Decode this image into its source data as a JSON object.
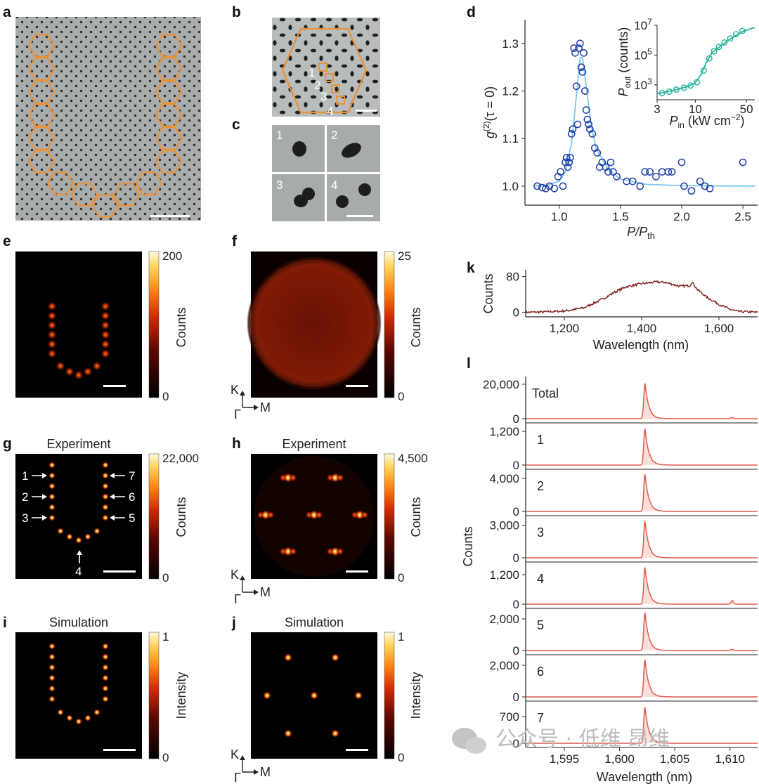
{
  "panels": {
    "a": {
      "label": "a"
    },
    "b": {
      "label": "b",
      "cavity_labels": [
        "1",
        "2",
        "3",
        "4"
      ]
    },
    "c": {
      "label": "c",
      "tile_labels": [
        "1",
        "2",
        "3",
        "4"
      ]
    },
    "d": {
      "label": "d"
    },
    "e": {
      "label": "e",
      "colorbar": {
        "max": "200",
        "min": "0",
        "label": "Counts"
      }
    },
    "f": {
      "label": "f",
      "colorbar": {
        "max": "25",
        "min": "0",
        "label": "Counts"
      },
      "axes": {
        "k": "K",
        "gamma": "Γ",
        "m": "M"
      }
    },
    "g": {
      "label": "g",
      "title": "Experiment",
      "colorbar": {
        "max": "22,000",
        "min": "0",
        "label": "Counts"
      },
      "arrows": [
        "1",
        "2",
        "3",
        "4",
        "5",
        "6",
        "7"
      ]
    },
    "h": {
      "label": "h",
      "title": "Experiment",
      "colorbar": {
        "max": "4,500",
        "min": "0",
        "label": "Counts"
      },
      "axes": {
        "k": "K",
        "gamma": "Γ",
        "m": "M"
      }
    },
    "i": {
      "label": "i",
      "title": "Simulation",
      "colorbar": {
        "max": "1",
        "min": "0",
        "label": "Intensity"
      }
    },
    "j": {
      "label": "j",
      "title": "Simulation",
      "colorbar": {
        "max": "1",
        "min": "0",
        "label": "Intensity"
      },
      "axes": {
        "k": "K",
        "gamma": "Γ",
        "m": "M"
      }
    },
    "k": {
      "label": "k"
    },
    "l": {
      "label": "l"
    }
  },
  "watermark": "公众号 · 低维 昂维",
  "colors": {
    "orange": "#e8923a",
    "marker_blue": "#1f3fa8",
    "fit_blue": "#7ec8ea",
    "inset_green": "#22b39a",
    "k_line": "#7a1d16",
    "l_line": "#e05a4e",
    "l_fill": "#f6c9c3"
  },
  "chart_data": [
    {
      "id": "d",
      "type": "scatter",
      "xlabel": "P/P_th",
      "ylabel": "g(2)(τ = 0)",
      "xlim": [
        0.72,
        2.62
      ],
      "ylim": [
        0.96,
        1.35
      ],
      "xticks": [
        1.0,
        1.5,
        2.0,
        2.5
      ],
      "xticklabels": [
        "1.0",
        "1.5",
        "2.0",
        "2.5"
      ],
      "yticks": [
        1.0,
        1.1,
        1.2,
        1.3
      ],
      "yticklabels": [
        "1.0",
        "1.1",
        "1.2",
        "1.3"
      ],
      "series": [
        {
          "marker": "open-circle",
          "x": [
            0.82,
            0.86,
            0.89,
            0.92,
            0.96,
            0.99,
            1.01,
            1.03,
            1.05,
            1.06,
            1.07,
            1.08,
            1.09,
            1.1,
            1.11,
            1.12,
            1.13,
            1.14,
            1.15,
            1.16,
            1.17,
            1.18,
            1.19,
            1.2,
            1.21,
            1.22,
            1.23,
            1.24,
            1.25,
            1.27,
            1.29,
            1.31,
            1.33,
            1.35,
            1.38,
            1.4,
            1.42,
            1.44,
            1.47,
            1.55,
            1.6,
            1.66,
            1.7,
            1.74,
            1.79,
            1.84,
            1.89,
            1.92,
            2.0,
            2.02,
            2.08,
            2.15,
            2.19,
            2.23,
            2.5
          ],
          "y": [
            1.0,
            0.997,
            0.995,
            1.0,
            0.995,
            1.02,
            1.03,
            1.0,
            1.05,
            1.06,
            1.04,
            1.05,
            1.06,
            1.11,
            1.12,
            1.29,
            1.28,
            1.21,
            1.13,
            1.29,
            1.3,
            1.25,
            1.24,
            1.28,
            1.2,
            1.16,
            1.14,
            1.13,
            1.12,
            1.11,
            1.08,
            1.07,
            1.04,
            1.05,
            1.04,
            1.03,
            1.05,
            1.03,
            1.02,
            1.01,
            1.01,
            1.0,
            1.03,
            1.03,
            1.02,
            1.03,
            1.03,
            1.03,
            1.05,
            1.0,
            0.99,
            1.01,
            1.0,
            0.995,
            1.05
          ]
        },
        {
          "type": "line",
          "marker": "none",
          "x": [
            0.8,
            0.9,
            1.0,
            1.05,
            1.1,
            1.14,
            1.17,
            1.19,
            1.22,
            1.26,
            1.3,
            1.4,
            1.5,
            1.7,
            2.0,
            2.6
          ],
          "y": [
            1.0,
            1.002,
            1.01,
            1.03,
            1.09,
            1.19,
            1.27,
            1.27,
            1.21,
            1.13,
            1.08,
            1.035,
            1.015,
            1.004,
            1.001,
            1.0
          ]
        }
      ],
      "inset": {
        "type": "scatter",
        "xscale": "log",
        "yscale": "log",
        "xlabel": "P_in (kW cm−2)",
        "ylabel": "P_out (counts)",
        "xlim": [
          3,
          65
        ],
        "ylim": [
          100,
          10000000
        ],
        "xticks": [
          3,
          10,
          50
        ],
        "xticklabels": [
          "3",
          "10",
          "50"
        ],
        "yticks": [
          1000,
          100000,
          10000000
        ],
        "x": [
          3.5,
          4.4,
          5.5,
          7.0,
          8.6,
          10.5,
          13.0,
          15.5,
          18.0,
          21.0,
          25.0,
          30.0,
          36.0,
          44.0
        ],
        "y": [
          280,
          350,
          480,
          650,
          900,
          1500,
          9000,
          60000,
          180000,
          350000,
          700000,
          1300000,
          2500000,
          4200000
        ],
        "fit_x": [
          3.0,
          5.0,
          8.0,
          10.0,
          12.0,
          14.0,
          17.0,
          22.0,
          30.0,
          45.0,
          65.0
        ],
        "fit_y": [
          250,
          420,
          800,
          1400,
          5000,
          30000,
          150000,
          400000,
          1200000,
          4000000,
          7000000
        ]
      }
    },
    {
      "id": "k",
      "type": "line",
      "xlabel": "Wavelength (nm)",
      "ylabel": "Counts",
      "xlim": [
        1100,
        1700
      ],
      "ylim": [
        -10,
        95
      ],
      "xticks": [
        1200,
        1400,
        1600
      ],
      "xticklabels": [
        "1,200",
        "1,400",
        "1,600"
      ],
      "yticks": [
        0,
        80
      ],
      "yticklabels": [
        "0",
        "80"
      ],
      "x": [
        1100,
        1150,
        1200,
        1250,
        1300,
        1330,
        1360,
        1400,
        1440,
        1460,
        1500,
        1525,
        1530,
        1545,
        1570,
        1600,
        1630,
        1650,
        1700
      ],
      "y": [
        0,
        1,
        3,
        10,
        30,
        45,
        57,
        64,
        68,
        67,
        58,
        60,
        68,
        50,
        33,
        18,
        6,
        2,
        0
      ]
    },
    {
      "id": "l",
      "type": "line",
      "xlabel": "Wavelength (nm)",
      "ylabel": "Counts",
      "xlim": [
        1591.5,
        1612.5
      ],
      "xticks": [
        1595,
        1600,
        1605,
        1610
      ],
      "xticklabels": [
        "1,595",
        "1,600",
        "1,605",
        "1,610"
      ],
      "peak_x": 1602.3,
      "series": [
        {
          "name": "Total",
          "ymax_label": "20,000",
          "ylim": [
            0,
            22000
          ],
          "peak": 20500,
          "side_peak": 700
        },
        {
          "name": "1",
          "ymax_label": "1,200",
          "ylim": [
            0,
            1350
          ],
          "peak": 1300,
          "side_peak": 0
        },
        {
          "name": "2",
          "ymax_label": "4,000",
          "ylim": [
            0,
            4600
          ],
          "peak": 4500,
          "side_peak": 0
        },
        {
          "name": "3",
          "ymax_label": "3,000",
          "ylim": [
            0,
            3500
          ],
          "peak": 3400,
          "side_peak": 0
        },
        {
          "name": "4",
          "ymax_label": "1,200",
          "ylim": [
            0,
            1550
          ],
          "peak": 1500,
          "side_peak": 150
        },
        {
          "name": "5",
          "ymax_label": "2,000",
          "ylim": [
            0,
            2400
          ],
          "peak": 2400,
          "side_peak": 80
        },
        {
          "name": "6",
          "ymax_label": "2,000",
          "ylim": [
            0,
            2400
          ],
          "peak": 2350,
          "side_peak": 0
        },
        {
          "name": "7",
          "ymax_label": "700",
          "ylim": [
            0,
            1000
          ],
          "peak": 950,
          "side_peak": 0
        }
      ]
    }
  ]
}
